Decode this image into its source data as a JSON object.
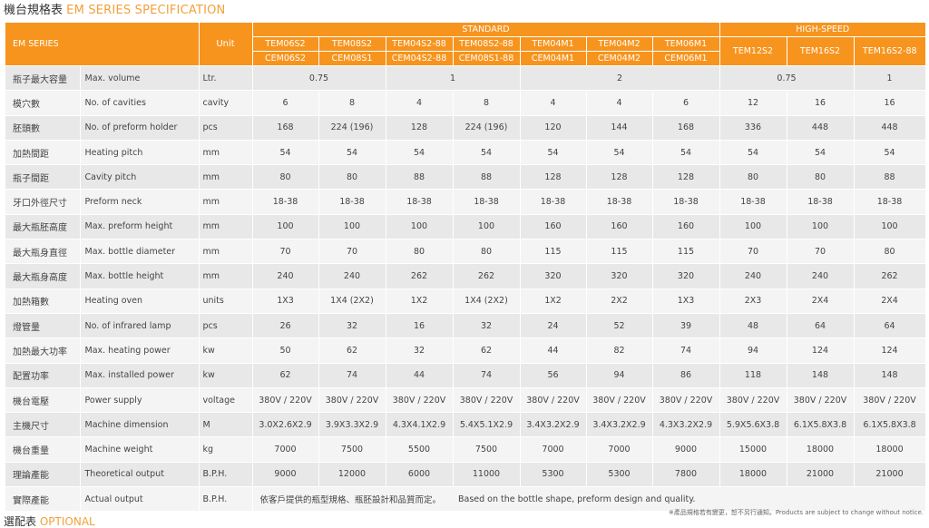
{
  "title": {
    "zh": "機台規格表",
    "en": "EM SERIES SPECIFICATION"
  },
  "header": {
    "series": "EM SERIES",
    "unit": "Unit",
    "group_standard": "STANDARD",
    "group_highspeed": "HIGH-SPEED",
    "standard_models": [
      {
        "top": "TEM06S2",
        "bottom": "CEM06S2"
      },
      {
        "top": "TEM08S2",
        "bottom": "CEM08S1"
      },
      {
        "top": "TEM04S2-88",
        "bottom": "CEM04S2-88"
      },
      {
        "top": "TEM08S2-88",
        "bottom": "CEM08S1-88"
      },
      {
        "top": "TEM04M1",
        "bottom": "CEM04M1"
      },
      {
        "top": "TEM04M2",
        "bottom": "CEM04M2"
      },
      {
        "top": "TEM06M1",
        "bottom": "CEM06M1"
      }
    ],
    "highspeed_models": [
      "TEM12S2",
      "TEM16S2",
      "TEM16S2-88"
    ]
  },
  "rows": [
    {
      "zh": "瓶子最大容量",
      "en": "Max. volume",
      "unit": "Ltr.",
      "merged": [
        {
          "span": 2,
          "text": "0.75"
        },
        {
          "span": 2,
          "text": "1"
        },
        {
          "span": 3,
          "text": "2"
        },
        {
          "span": 2,
          "text": "0.75"
        },
        {
          "span": 1,
          "text": "1"
        }
      ]
    },
    {
      "zh": "模穴數",
      "en": "No. of cavities",
      "unit": "cavity",
      "values": [
        "6",
        "8",
        "4",
        "8",
        "4",
        "4",
        "6",
        "12",
        "16",
        "16"
      ]
    },
    {
      "zh": "胚頭數",
      "en": "No. of preform holder",
      "unit": "pcs",
      "values": [
        "168",
        "224 (196)",
        "128",
        "224 (196)",
        "120",
        "144",
        "168",
        "336",
        "448",
        "448"
      ]
    },
    {
      "zh": "加熱間距",
      "en": "Heating pitch",
      "unit": "mm",
      "values": [
        "54",
        "54",
        "54",
        "54",
        "54",
        "54",
        "54",
        "54",
        "54",
        "54"
      ]
    },
    {
      "zh": "瓶子間距",
      "en": "Cavity pitch",
      "unit": "mm",
      "values": [
        "80",
        "80",
        "88",
        "88",
        "128",
        "128",
        "128",
        "80",
        "80",
        "88"
      ]
    },
    {
      "zh": "牙口外徑尺寸",
      "en": "Preform neck",
      "unit": "mm",
      "values": [
        "18-38",
        "18-38",
        "18-38",
        "18-38",
        "18-38",
        "18-38",
        "18-38",
        "18-38",
        "18-38",
        "18-38"
      ]
    },
    {
      "zh": "最大瓶胚高度",
      "en": "Max. preform height",
      "unit": "mm",
      "values": [
        "100",
        "100",
        "100",
        "100",
        "160",
        "160",
        "160",
        "100",
        "100",
        "100"
      ]
    },
    {
      "zh": "最大瓶身直徑",
      "en": "Max. bottle diameter",
      "unit": "mm",
      "values": [
        "70",
        "70",
        "80",
        "80",
        "115",
        "115",
        "115",
        "70",
        "70",
        "80"
      ]
    },
    {
      "zh": "最大瓶身高度",
      "en": "Max. bottle height",
      "unit": "mm",
      "values": [
        "240",
        "240",
        "262",
        "262",
        "320",
        "320",
        "320",
        "240",
        "240",
        "262"
      ]
    },
    {
      "zh": "加熱箱數",
      "en": "Heating oven",
      "unit": "units",
      "values": [
        "1X3",
        "1X4 (2X2)",
        "1X2",
        "1X4 (2X2)",
        "1X2",
        "2X2",
        "1X3",
        "2X3",
        "2X4",
        "2X4"
      ]
    },
    {
      "zh": "燈管量",
      "en": "No. of infrared lamp",
      "unit": "pcs",
      "values": [
        "26",
        "32",
        "16",
        "32",
        "24",
        "52",
        "39",
        "48",
        "64",
        "64"
      ]
    },
    {
      "zh": "加熱最大功率",
      "en": "Max. heating power",
      "unit": "kw",
      "values": [
        "50",
        "62",
        "32",
        "62",
        "44",
        "82",
        "74",
        "94",
        "124",
        "124"
      ]
    },
    {
      "zh": "配置功率",
      "en": "Max. installed power",
      "unit": "kw",
      "values": [
        "62",
        "74",
        "44",
        "74",
        "56",
        "94",
        "86",
        "118",
        "148",
        "148"
      ]
    },
    {
      "zh": "機台電壓",
      "en": "Power supply",
      "unit": "voltage",
      "values": [
        "380V / 220V",
        "380V / 220V",
        "380V / 220V",
        "380V / 220V",
        "380V / 220V",
        "380V / 220V",
        "380V / 220V",
        "380V / 220V",
        "380V / 220V",
        "380V / 220V"
      ]
    },
    {
      "zh": "主機尺寸",
      "en": "Machine dimension",
      "unit": "M",
      "values": [
        "3.0X2.6X2.9",
        "3.9X3.3X2.9",
        "4.3X4.1X2.9",
        "5.4X5.1X2.9",
        "3.4X3.2X2.9",
        "3.4X3.2X2.9",
        "4.3X3.2X2.9",
        "5.9X5.6X3.8",
        "6.1X5.8X3.8",
        "6.1X5.8X3.8"
      ]
    },
    {
      "zh": "機台重量",
      "en": "Machine weight",
      "unit": "kg",
      "values": [
        "7000",
        "7500",
        "5500",
        "7500",
        "7000",
        "7000",
        "9000",
        "15000",
        "18000",
        "18000"
      ]
    },
    {
      "zh": "理論產能",
      "en": "Theoretical output",
      "unit": "B.P.H.",
      "values": [
        "9000",
        "12000",
        "6000",
        "11000",
        "5300",
        "5300",
        "7800",
        "18000",
        "21000",
        "21000"
      ]
    },
    {
      "zh": "實際產能",
      "en": "Actual output",
      "unit": "B.P.H.",
      "note_zh": "依客戶提供的瓶型規格、瓶胚設計和品質而定。",
      "note_en": "Based on the bottle shape, preform design and quality."
    }
  ],
  "footnote": "※產品規格若有變更，恕不另行通知。Products are subject to change without notice.",
  "next_heading": {
    "zh": "選配表",
    "en": "OPTIONAL"
  }
}
